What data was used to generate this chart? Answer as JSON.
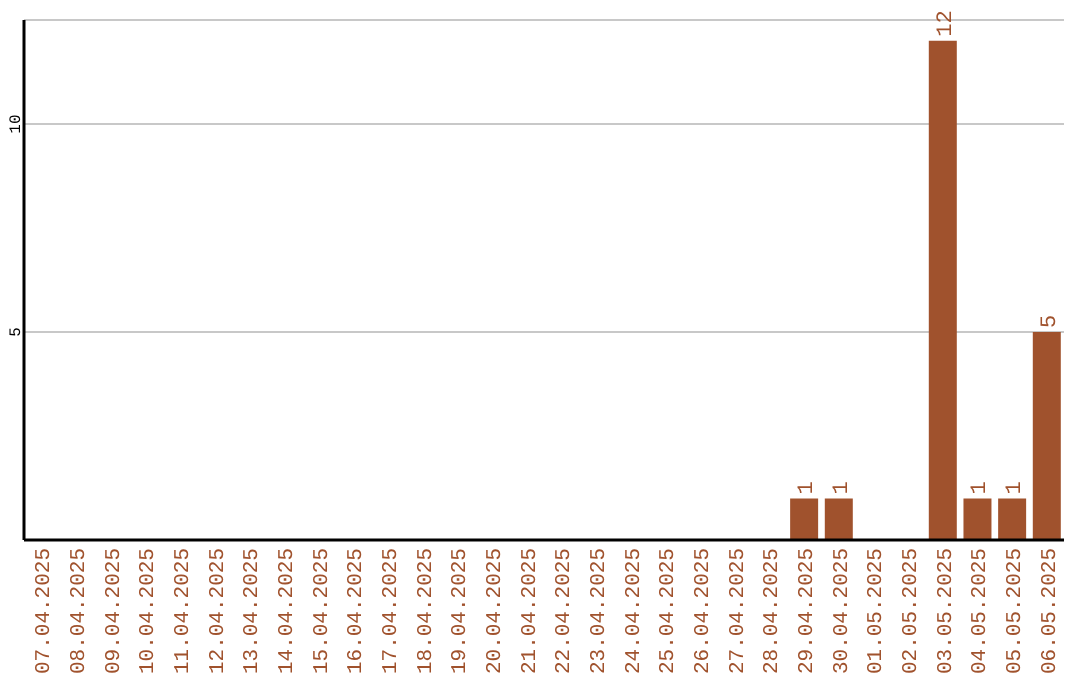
{
  "chart_data": {
    "type": "bar",
    "categories": [
      "07.04.2025",
      "08.04.2025",
      "09.04.2025",
      "10.04.2025",
      "11.04.2025",
      "12.04.2025",
      "13.04.2025",
      "14.04.2025",
      "15.04.2025",
      "16.04.2025",
      "17.04.2025",
      "18.04.2025",
      "19.04.2025",
      "20.04.2025",
      "21.04.2025",
      "22.04.2025",
      "23.04.2025",
      "24.04.2025",
      "25.04.2025",
      "26.04.2025",
      "27.04.2025",
      "28.04.2025",
      "29.04.2025",
      "30.04.2025",
      "01.05.2025",
      "02.05.2025",
      "03.05.2025",
      "04.05.2025",
      "05.05.2025",
      "06.05.2025"
    ],
    "values": [
      0,
      0,
      0,
      0,
      0,
      0,
      0,
      0,
      0,
      0,
      0,
      0,
      0,
      0,
      0,
      0,
      0,
      0,
      0,
      0,
      0,
      0,
      1,
      1,
      0,
      0,
      12,
      1,
      1,
      5
    ],
    "value_labels": [
      null,
      null,
      null,
      null,
      null,
      null,
      null,
      null,
      null,
      null,
      null,
      null,
      null,
      null,
      null,
      null,
      null,
      null,
      null,
      null,
      null,
      null,
      "1",
      "1",
      null,
      null,
      "12",
      "1",
      "1",
      "5"
    ],
    "color": "#a0522d",
    "ylim": [
      0,
      12.5
    ],
    "yticks": [
      5,
      10
    ],
    "grid": "y"
  }
}
